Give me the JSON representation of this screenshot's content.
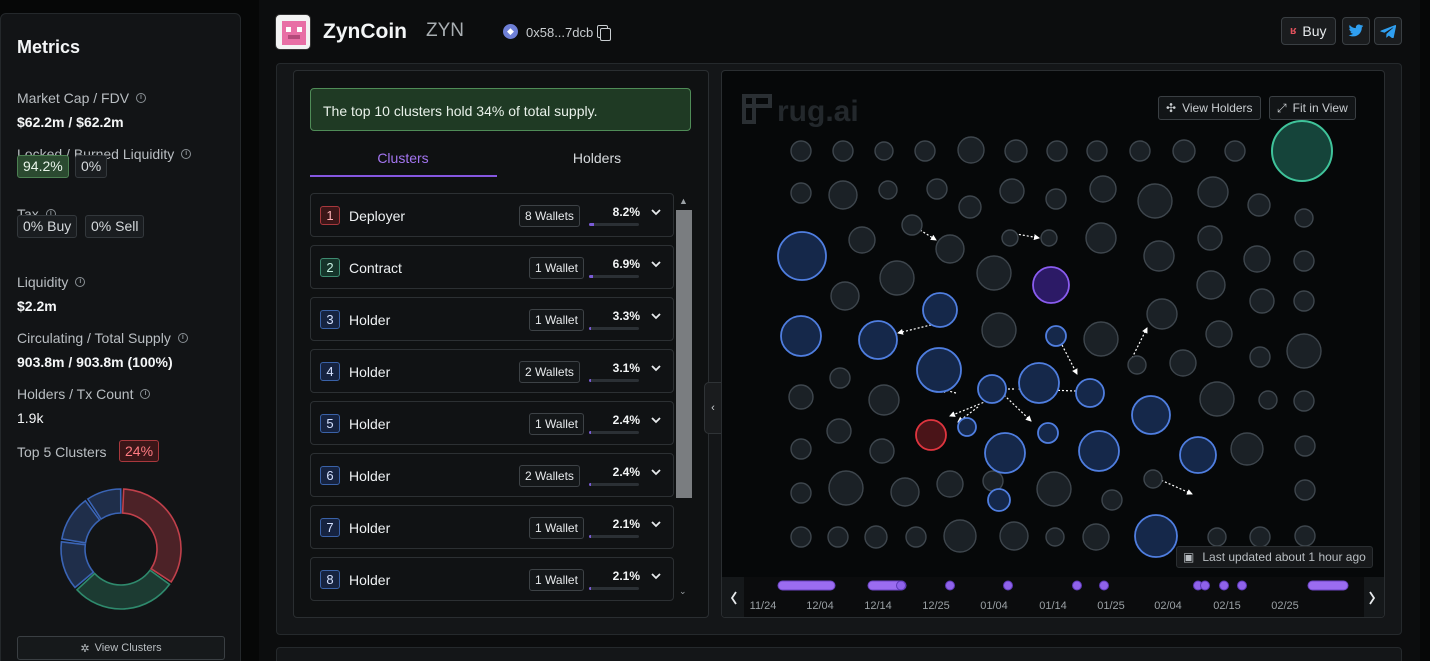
{
  "metrics": {
    "title": "Metrics",
    "market_cap_label": "Market Cap / FDV",
    "market_cap_value": "$62.2m / $62.2m",
    "liquidity_lock_label": "Locked / Burned Liquidity",
    "locked_pct": "94.2%",
    "burned_pct": "0%",
    "tax_label": "Tax",
    "tax_buy": "0% Buy",
    "tax_sell": "0% Sell",
    "liquidity_label": "Liquidity",
    "liquidity_value": "$2.2m",
    "supply_label": "Circulating / Total Supply",
    "supply_value": "903.8m / 903.8m (100%)",
    "holders_label": "Holders / Tx Count",
    "holders_value": "1.9k",
    "top5_label": "Top 5 Clusters",
    "top5_value": "24%",
    "donut_segments": [
      {
        "value": 8.2,
        "color": "#c0404b"
      },
      {
        "value": 6.9,
        "color": "#2f8a6d"
      },
      {
        "value": 3.3,
        "color": "#3a64b5"
      },
      {
        "value": 3.1,
        "color": "#3a64b5"
      },
      {
        "value": 2.4,
        "color": "#3a64b5"
      }
    ],
    "view_clusters_label": "View Clusters"
  },
  "token": {
    "name": "ZynCoin",
    "symbol": "ZYN",
    "address": "0x58...7dcb",
    "buy_label": "Buy"
  },
  "clusters": {
    "banner": "The top 10 clusters hold 34% of total supply.",
    "tabs": [
      "Clusters",
      "Holders"
    ],
    "rows": [
      {
        "rank": "1",
        "name": "Deployer",
        "wallets": "8 Wallets",
        "pct": "8.2%",
        "fill": 0.082,
        "style": "red"
      },
      {
        "rank": "2",
        "name": "Contract",
        "wallets": "1 Wallet",
        "pct": "6.9%",
        "fill": 0.069,
        "style": "green"
      },
      {
        "rank": "3",
        "name": "Holder",
        "wallets": "1 Wallet",
        "pct": "3.3%",
        "fill": 0.033,
        "style": "blue"
      },
      {
        "rank": "4",
        "name": "Holder",
        "wallets": "2 Wallets",
        "pct": "3.1%",
        "fill": 0.031,
        "style": "blue"
      },
      {
        "rank": "5",
        "name": "Holder",
        "wallets": "1 Wallet",
        "pct": "2.4%",
        "fill": 0.024,
        "style": "blue"
      },
      {
        "rank": "6",
        "name": "Holder",
        "wallets": "2 Wallets",
        "pct": "2.4%",
        "fill": 0.024,
        "style": "blue"
      },
      {
        "rank": "7",
        "name": "Holder",
        "wallets": "1 Wallet",
        "pct": "2.1%",
        "fill": 0.021,
        "style": "blue"
      },
      {
        "rank": "8",
        "name": "Holder",
        "wallets": "1 Wallet",
        "pct": "2.1%",
        "fill": 0.021,
        "style": "blue"
      }
    ]
  },
  "map": {
    "watermark": "rug.ai",
    "view_holders_label": "View Holders",
    "fit_in_view_label": "Fit in View",
    "last_updated": "Last updated about 1 hour ago",
    "timeline_labels": [
      "11/24",
      "12/04",
      "12/14",
      "12/25",
      "01/04",
      "01/14",
      "01/25",
      "02/04",
      "02/15",
      "02/25"
    ]
  }
}
